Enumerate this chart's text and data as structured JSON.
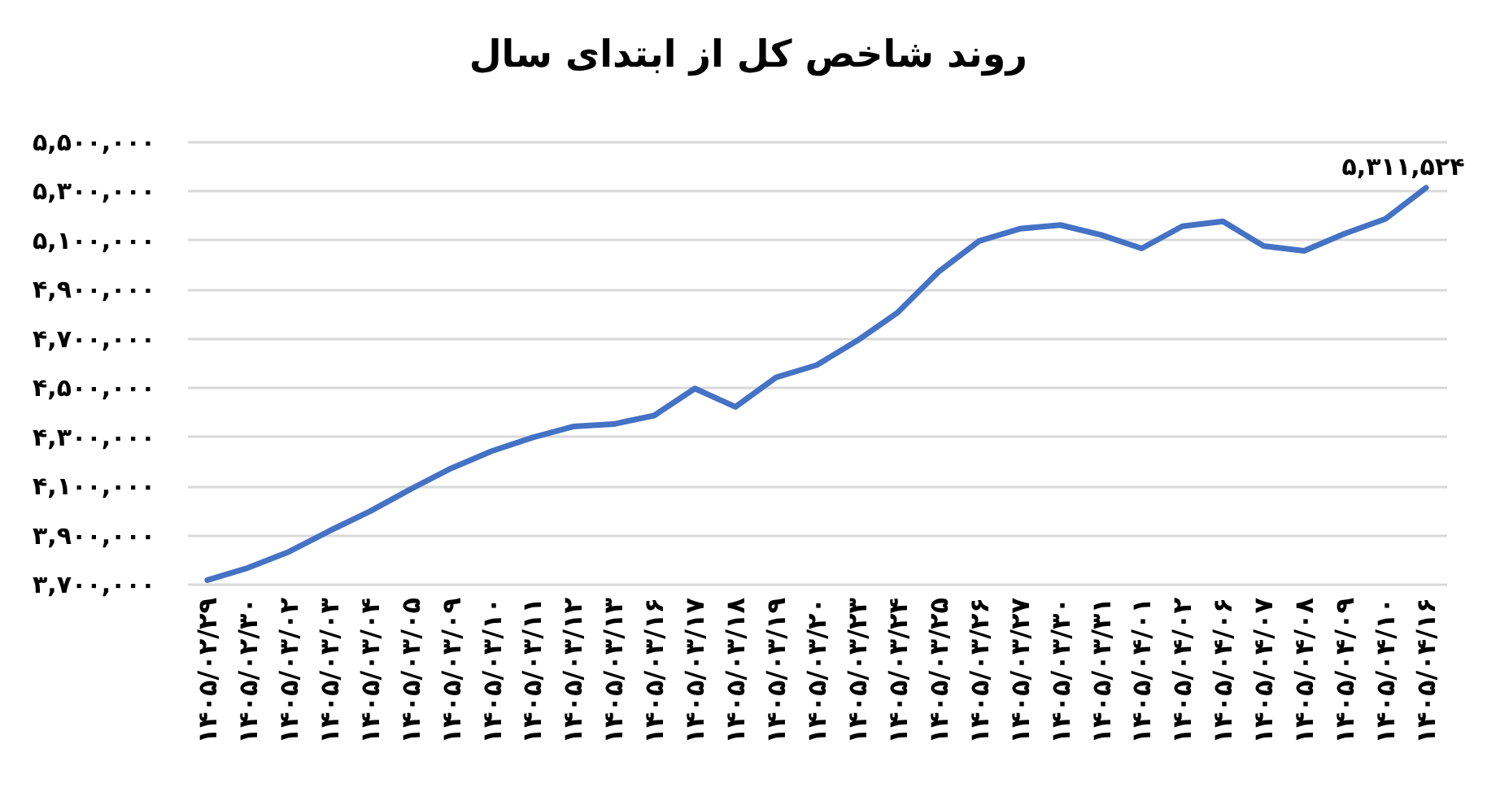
{
  "chart_data": {
    "type": "line",
    "title": "روند شاخص کل از ابتدای سال",
    "categories": [
      "۱۴۰۵/۰۲/۲۹",
      "۱۴۰۵/۰۲/۳۰",
      "۱۴۰۵/۰۳/۰۲",
      "۱۴۰۵/۰۳/۰۳",
      "۱۴۰۵/۰۳/۰۴",
      "۱۴۰۵/۰۳/۰۵",
      "۱۴۰۵/۰۳/۰۹",
      "۱۴۰۵/۰۳/۱۰",
      "۱۴۰۵/۰۳/۱۱",
      "۱۴۰۵/۰۳/۱۲",
      "۱۴۰۵/۰۳/۱۳",
      "۱۴۰۵/۰۳/۱۶",
      "۱۴۰۵/۰۳/۱۷",
      "۱۴۰۵/۰۳/۱۸",
      "۱۴۰۵/۰۳/۱۹",
      "۱۴۰۵/۰۳/۲۰",
      "۱۴۰۵/۰۳/۲۳",
      "۱۴۰۵/۰۳/۲۴",
      "۱۴۰۵/۰۳/۲۵",
      "۱۴۰۵/۰۳/۲۶",
      "۱۴۰۵/۰۳/۲۷",
      "۱۴۰۵/۰۳/۳۰",
      "۱۴۰۵/۰۳/۳۱",
      "۱۴۰۵/۰۴/۰۱",
      "۱۴۰۵/۰۴/۰۲",
      "۱۴۰۵/۰۴/۰۶",
      "۱۴۰۵/۰۴/۰۷",
      "۱۴۰۵/۰۴/۰۸",
      "۱۴۰۵/۰۴/۰۹",
      "۱۴۰۵/۰۴/۱۰",
      "۱۴۰۵/۰۴/۱۶"
    ],
    "series": [
      {
        "color": "#4472c4",
        "values": [
          3715000,
          3765000,
          3830000,
          3915000,
          3995000,
          4085000,
          4170000,
          4240000,
          4295000,
          4340000,
          4350000,
          4385000,
          4495000,
          4420000,
          4540000,
          4590000,
          4690000,
          4805000,
          4970000,
          5095000,
          5145000,
          5160000,
          5120000,
          5065000,
          5155000,
          5175000,
          5075000,
          5055000,
          5125000,
          5185000,
          5311524
        ],
        "value_labels": [
          null,
          null,
          null,
          null,
          null,
          null,
          null,
          null,
          null,
          null,
          null,
          null,
          null,
          null,
          null,
          null,
          null,
          null,
          null,
          null,
          null,
          null,
          null,
          null,
          null,
          null,
          null,
          null,
          null,
          null,
          "۵,۳۱۱,۵۲۴"
        ]
      }
    ],
    "ylim": [
      3700000,
      5500000
    ],
    "yticks": [
      {
        "value": 3700000,
        "label": "۳,۷۰۰,۰۰۰"
      },
      {
        "value": 3900000,
        "label": "۳,۹۰۰,۰۰۰"
      },
      {
        "value": 4100000,
        "label": "۴,۱۰۰,۰۰۰"
      },
      {
        "value": 4300000,
        "label": "۴,۳۰۰,۰۰۰"
      },
      {
        "value": 4500000,
        "label": "۴,۵۰۰,۰۰۰"
      },
      {
        "value": 4700000,
        "label": "۴,۷۰۰,۰۰۰"
      },
      {
        "value": 4900000,
        "label": "۴,۹۰۰,۰۰۰"
      },
      {
        "value": 5100000,
        "label": "۵,۱۰۰,۰۰۰"
      },
      {
        "value": 5300000,
        "label": "۵,۳۰۰,۰۰۰"
      },
      {
        "value": 5500000,
        "label": "۵,۵۰۰,۰۰۰"
      }
    ],
    "grid": "y"
  }
}
